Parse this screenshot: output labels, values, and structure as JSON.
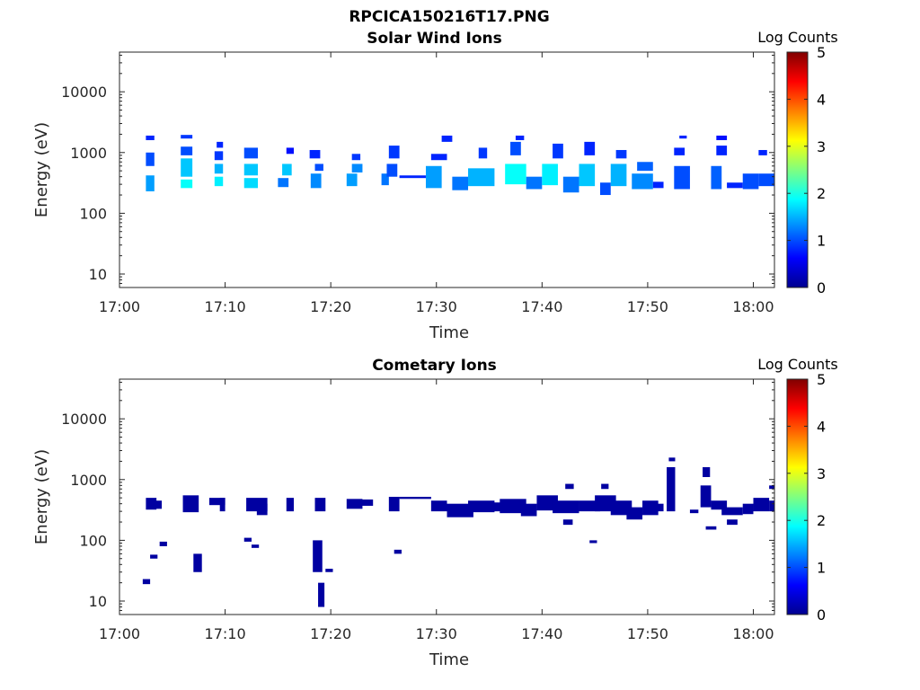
{
  "figure_title": "RPCICA150216T17.PNG",
  "chart_data": [
    {
      "type": "heatmap",
      "title": "Solar Wind Ions",
      "xlabel": "Time",
      "ylabel": "Energy (eV)",
      "x_ticks": [
        "17:00",
        "17:10",
        "17:20",
        "17:30",
        "17:40",
        "17:50",
        "18:00"
      ],
      "x_range_minutes": [
        0,
        62
      ],
      "y_ticks": [
        "10",
        "100",
        "1000",
        "10000"
      ],
      "y_scale": "log",
      "y_range": [
        6,
        45000
      ],
      "colorbar": {
        "label": "Log Counts",
        "ticks": [
          "0",
          "1",
          "2",
          "3",
          "4",
          "5"
        ],
        "range": [
          0,
          5
        ],
        "colormap": "jet"
      },
      "cells": [
        [
          2.5,
          3.3,
          230,
          420,
          1.4
        ],
        [
          2.5,
          3.3,
          600,
          1000,
          1.0
        ],
        [
          2.5,
          3.3,
          1600,
          1900,
          0.8
        ],
        [
          5.8,
          6.9,
          260,
          360,
          1.9
        ],
        [
          5.8,
          6.9,
          400,
          800,
          1.6
        ],
        [
          5.8,
          6.9,
          900,
          1250,
          1.0
        ],
        [
          5.8,
          6.9,
          1700,
          1950,
          0.9
        ],
        [
          9.0,
          9.8,
          280,
          400,
          1.8
        ],
        [
          9.0,
          9.8,
          450,
          650,
          1.5
        ],
        [
          9.0,
          9.8,
          750,
          1050,
          0.9
        ],
        [
          9.2,
          9.8,
          1200,
          1500,
          0.8
        ],
        [
          11.8,
          13.1,
          260,
          380,
          1.7
        ],
        [
          11.8,
          13.1,
          420,
          650,
          1.6
        ],
        [
          11.8,
          13.1,
          800,
          1200,
          1.0
        ],
        [
          15.0,
          16.0,
          270,
          380,
          1.2
        ],
        [
          15.4,
          16.3,
          420,
          650,
          1.6
        ],
        [
          15.8,
          16.5,
          950,
          1200,
          0.7
        ],
        [
          18.1,
          19.1,
          260,
          450,
          1.3
        ],
        [
          18.5,
          19.3,
          500,
          650,
          1.0
        ],
        [
          18.0,
          19.0,
          800,
          1100,
          0.8
        ],
        [
          21.5,
          22.5,
          280,
          450,
          1.4
        ],
        [
          22.0,
          23.0,
          470,
          650,
          1.3
        ],
        [
          22.0,
          22.8,
          750,
          950,
          0.9
        ],
        [
          24.8,
          25.5,
          290,
          450,
          1.2
        ],
        [
          25.3,
          26.3,
          400,
          650,
          1.0
        ],
        [
          25.5,
          26.5,
          800,
          1300,
          0.9
        ],
        [
          26.5,
          29.0,
          380,
          420,
          0.8
        ],
        [
          29.0,
          30.5,
          260,
          600,
          1.4
        ],
        [
          29.5,
          31.0,
          750,
          950,
          0.8
        ],
        [
          30.5,
          31.5,
          1500,
          1900,
          0.8
        ],
        [
          31.5,
          33.0,
          240,
          400,
          1.2
        ],
        [
          33.0,
          35.5,
          280,
          550,
          1.5
        ],
        [
          34.0,
          34.8,
          800,
          1200,
          0.9
        ],
        [
          36.5,
          38.5,
          300,
          650,
          1.9
        ],
        [
          37.0,
          38.0,
          900,
          1500,
          1.0
        ],
        [
          37.5,
          38.3,
          1600,
          1900,
          0.8
        ],
        [
          38.5,
          40.0,
          250,
          400,
          1.2
        ],
        [
          40.0,
          41.5,
          290,
          650,
          1.8
        ],
        [
          41.0,
          42.0,
          800,
          1400,
          0.9
        ],
        [
          42.0,
          43.5,
          220,
          400,
          1.2
        ],
        [
          43.5,
          45.0,
          280,
          650,
          1.6
        ],
        [
          44.0,
          45.0,
          900,
          1500,
          0.8
        ],
        [
          45.5,
          46.5,
          200,
          320,
          1.0
        ],
        [
          46.5,
          48.0,
          280,
          650,
          1.5
        ],
        [
          47.0,
          48.0,
          800,
          1100,
          0.9
        ],
        [
          48.5,
          50.5,
          250,
          450,
          1.3
        ],
        [
          49.0,
          50.5,
          500,
          700,
          1.1
        ],
        [
          50.5,
          51.5,
          260,
          330,
          0.8
        ],
        [
          52.5,
          54.0,
          250,
          600,
          1.0
        ],
        [
          52.5,
          53.5,
          900,
          1200,
          0.8
        ],
        [
          53.0,
          53.7,
          1700,
          1900,
          0.8
        ],
        [
          56.0,
          57.0,
          250,
          600,
          1.1
        ],
        [
          56.5,
          57.5,
          900,
          1300,
          0.8
        ],
        [
          56.5,
          57.5,
          1600,
          1900,
          0.7
        ],
        [
          57.5,
          59.0,
          260,
          320,
          0.8
        ],
        [
          59.0,
          60.5,
          250,
          450,
          1.0
        ],
        [
          60.5,
          62.0,
          280,
          450,
          1.0
        ],
        [
          60.5,
          61.3,
          900,
          1100,
          0.8
        ]
      ]
    },
    {
      "type": "heatmap",
      "title": "Cometary Ions",
      "xlabel": "Time",
      "ylabel": "Energy (eV)",
      "x_ticks": [
        "17:00",
        "17:10",
        "17:20",
        "17:30",
        "17:40",
        "17:50",
        "18:00"
      ],
      "x_range_minutes": [
        0,
        62
      ],
      "y_ticks": [
        "10",
        "100",
        "1000",
        "10000"
      ],
      "y_scale": "log",
      "y_range": [
        6,
        45000
      ],
      "colorbar": {
        "label": "Log Counts",
        "ticks": [
          "0",
          "1",
          "2",
          "3",
          "4",
          "5"
        ],
        "range": [
          0,
          5
        ],
        "colormap": "jet"
      },
      "cells": [
        [
          2.5,
          3.5,
          320,
          500,
          0.1
        ],
        [
          3.0,
          4.0,
          330,
          450,
          0.1
        ],
        [
          2.2,
          2.9,
          19,
          23,
          0.1
        ],
        [
          2.9,
          3.6,
          50,
          58,
          0.1
        ],
        [
          3.8,
          4.5,
          80,
          95,
          0.1
        ],
        [
          6.0,
          7.5,
          290,
          550,
          0.1
        ],
        [
          7.0,
          7.8,
          30,
          60,
          0.1
        ],
        [
          8.5,
          10.0,
          380,
          500,
          0.1
        ],
        [
          9.5,
          10.0,
          300,
          500,
          0.1
        ],
        [
          12.0,
          14.0,
          300,
          500,
          0.1
        ],
        [
          13.0,
          14.0,
          260,
          400,
          0.1
        ],
        [
          11.8,
          12.5,
          95,
          110,
          0.1
        ],
        [
          12.5,
          13.2,
          75,
          85,
          0.1
        ],
        [
          15.8,
          16.5,
          300,
          500,
          0.1
        ],
        [
          18.5,
          19.5,
          300,
          500,
          0.1
        ],
        [
          18.3,
          19.2,
          30,
          100,
          0.1
        ],
        [
          18.8,
          19.4,
          8,
          20,
          0.1
        ],
        [
          19.5,
          20.2,
          30,
          34,
          0.1
        ],
        [
          21.5,
          23.0,
          330,
          480,
          0.1
        ],
        [
          22.5,
          24.0,
          370,
          470,
          0.1
        ],
        [
          25.5,
          26.5,
          300,
          520,
          0.1
        ],
        [
          26.0,
          26.7,
          60,
          70,
          0.1
        ],
        [
          26.5,
          29.5,
          480,
          520,
          0.1
        ],
        [
          29.5,
          31.0,
          300,
          450,
          0.1
        ],
        [
          31.0,
          33.5,
          240,
          400,
          0.1
        ],
        [
          33.0,
          35.5,
          290,
          450,
          0.1
        ],
        [
          34.5,
          36.5,
          300,
          420,
          0.1
        ],
        [
          36.0,
          38.5,
          280,
          480,
          0.1
        ],
        [
          38.0,
          39.5,
          250,
          400,
          0.1
        ],
        [
          39.5,
          41.5,
          310,
          550,
          0.1
        ],
        [
          41.0,
          43.5,
          280,
          450,
          0.1
        ],
        [
          42.0,
          42.9,
          180,
          220,
          0.1
        ],
        [
          42.2,
          43.0,
          700,
          850,
          0.1
        ],
        [
          43.5,
          45.5,
          300,
          450,
          0.1
        ],
        [
          45.0,
          47.0,
          300,
          550,
          0.1
        ],
        [
          45.6,
          46.3,
          700,
          850,
          0.1
        ],
        [
          44.5,
          45.2,
          90,
          100,
          0.1
        ],
        [
          46.5,
          48.5,
          260,
          450,
          0.1
        ],
        [
          48.0,
          49.5,
          220,
          350,
          0.1
        ],
        [
          49.5,
          51.0,
          260,
          450,
          0.1
        ],
        [
          50.5,
          51.5,
          300,
          400,
          0.1
        ],
        [
          51.8,
          52.6,
          300,
          1600,
          0.1
        ],
        [
          52.0,
          52.6,
          2000,
          2300,
          0.1
        ],
        [
          54.0,
          54.8,
          280,
          320,
          0.1
        ],
        [
          55.0,
          56.0,
          350,
          800,
          0.1
        ],
        [
          55.2,
          55.9,
          1100,
          1600,
          0.1
        ],
        [
          55.5,
          56.5,
          150,
          170,
          0.1
        ],
        [
          56.0,
          57.5,
          320,
          450,
          0.1
        ],
        [
          57.0,
          59.0,
          260,
          350,
          0.1
        ],
        [
          57.5,
          58.5,
          180,
          220,
          0.1
        ],
        [
          59.0,
          60.0,
          270,
          400,
          0.1
        ],
        [
          60.0,
          61.5,
          300,
          500,
          0.1
        ],
        [
          61.5,
          62.0,
          300,
          450,
          0.1
        ],
        [
          61.5,
          62.0,
          700,
          800,
          0.1
        ]
      ]
    }
  ]
}
